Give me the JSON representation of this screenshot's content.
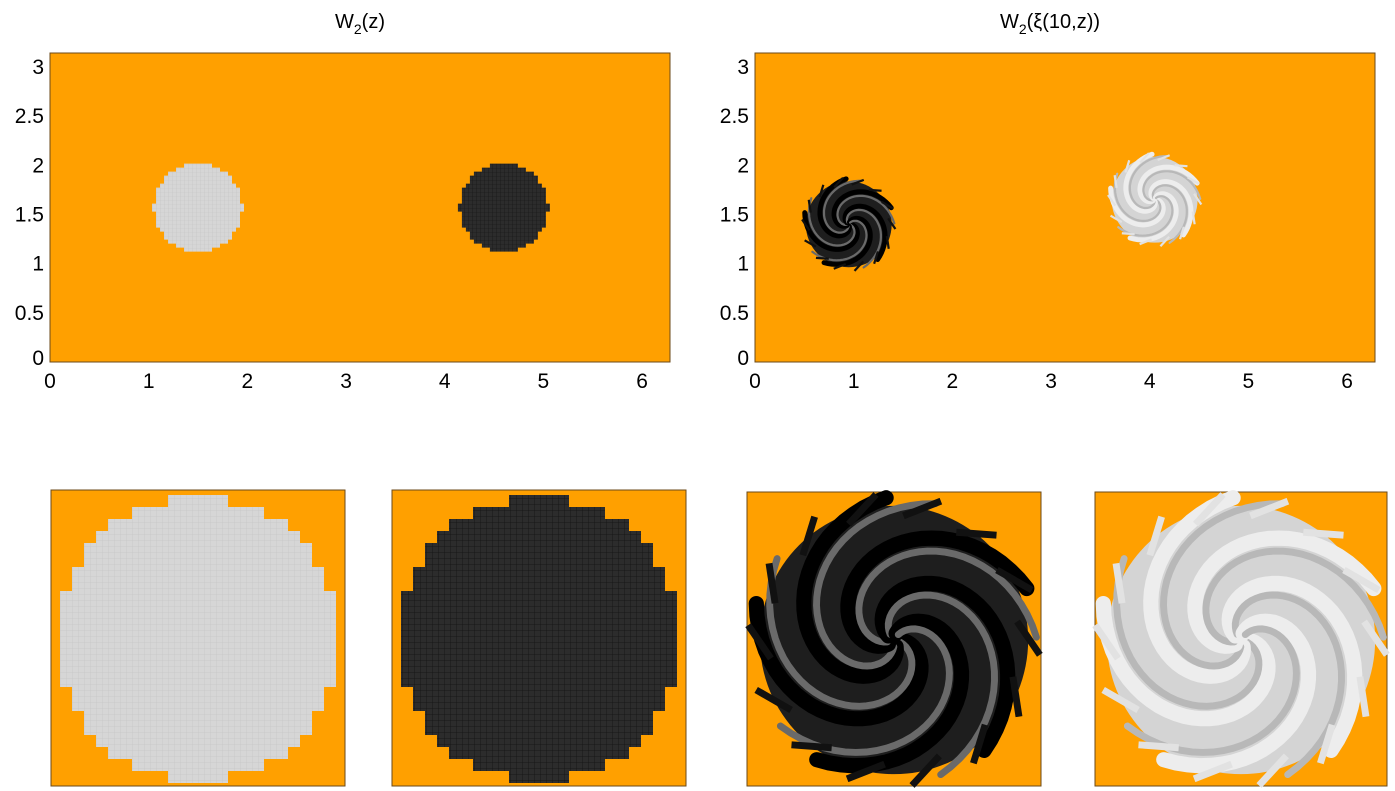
{
  "colors": {
    "background_field": "#FFA000",
    "light_blob": "#D6D6D6",
    "light_grid": "#C8C8C8",
    "dark_blob": "#2C2C2C",
    "dark_grid": "#111111",
    "frame": "#6B4A1A"
  },
  "chart_data": [
    {
      "type": "heatmap",
      "title_main": "W",
      "title_sub": "2",
      "title_rest": "(z)",
      "xlim": [
        0,
        6.283
      ],
      "ylim": [
        0,
        3.1416
      ],
      "x_ticks": [
        0,
        1,
        2,
        3,
        4,
        5,
        6
      ],
      "x_tick_labels": [
        "0",
        "1",
        "2",
        "3",
        "4",
        "5",
        "6"
      ],
      "y_ticks": [
        0,
        0.5,
        1,
        1.5,
        2,
        2.5,
        3
      ],
      "y_tick_labels": [
        "0",
        "0.5",
        "1",
        "1.5",
        "2",
        "2.5",
        "3"
      ],
      "regions": [
        {
          "shape": "disk",
          "cx": 1.5,
          "cy": 1.57,
          "r": 0.45,
          "fill": "light"
        },
        {
          "shape": "disk",
          "cx": 4.6,
          "cy": 1.57,
          "r": 0.45,
          "fill": "dark"
        }
      ]
    },
    {
      "type": "heatmap",
      "title_main": "W",
      "title_sub": "2",
      "title_rest": "(ξ(10,z))",
      "xlim": [
        0,
        6.283
      ],
      "ylim": [
        0,
        3.1416
      ],
      "x_ticks": [
        0,
        1,
        2,
        3,
        4,
        5,
        6
      ],
      "x_tick_labels": [
        "0",
        "1",
        "2",
        "3",
        "4",
        "5",
        "6"
      ],
      "y_ticks": [
        0,
        0.5,
        1,
        1.5,
        2,
        2.5,
        3
      ],
      "y_tick_labels": [
        "0",
        "0.5",
        "1",
        "1.5",
        "2",
        "2.5",
        "3"
      ],
      "regions": [
        {
          "shape": "swirl",
          "cx": 0.95,
          "cy": 1.4,
          "r": 0.45,
          "fill": "dark"
        },
        {
          "shape": "swirl",
          "cx": 4.05,
          "cy": 1.65,
          "r": 0.45,
          "fill": "light"
        }
      ]
    }
  ],
  "insets": [
    {
      "shape": "disk",
      "fill": "light"
    },
    {
      "shape": "disk",
      "fill": "dark"
    },
    {
      "shape": "swirl",
      "fill": "dark"
    },
    {
      "shape": "swirl",
      "fill": "light"
    }
  ]
}
